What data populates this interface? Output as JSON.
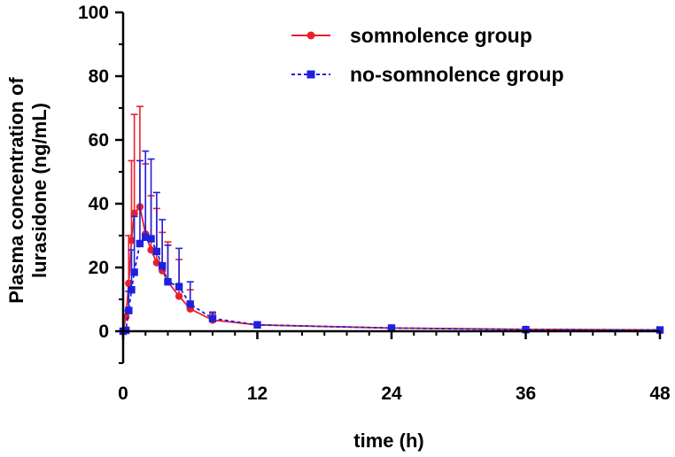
{
  "chart_data": {
    "type": "line",
    "title": "",
    "xlabel": "time (h)",
    "ylabel_lines": [
      "Plasma concentration of",
      "lurasidone (ng/mL)"
    ],
    "xlim": [
      0,
      48
    ],
    "ylim": [
      -10,
      100
    ],
    "x_ticks": [
      0,
      12,
      24,
      36,
      48
    ],
    "y_ticks": [
      0,
      20,
      40,
      60,
      80,
      100
    ],
    "x_tick_labels": [
      "0",
      "12",
      "24",
      "36",
      "48"
    ],
    "y_tick_labels": [
      "0",
      "20",
      "40",
      "60",
      "80",
      "100"
    ],
    "grid": false,
    "legend_position": "top-right",
    "series": [
      {
        "name": "somnolence group",
        "color": "#e8202a",
        "marker": "circle",
        "line_style": "solid",
        "x": [
          0,
          0.25,
          0.5,
          0.75,
          1,
          1.5,
          2,
          2.5,
          3,
          3.5,
          4,
          5,
          6,
          8,
          12,
          24,
          36,
          48
        ],
        "values": [
          0,
          4.5,
          15,
          28.5,
          37,
          39,
          30.5,
          25.5,
          21.5,
          19,
          15.5,
          11,
          7,
          3.5,
          2,
          1,
          0.6,
          0.4
        ],
        "errors": [
          0,
          2,
          15,
          25,
          31,
          31.5,
          22,
          17,
          17,
          12,
          12.5,
          11.5,
          6,
          2,
          0.4,
          0.3,
          0.2,
          0.1
        ]
      },
      {
        "name": "no-somnolence group",
        "color": "#1f1fe0",
        "marker": "square",
        "line_style": "dashed",
        "x": [
          0,
          0.25,
          0.5,
          0.75,
          1,
          1.5,
          2,
          2.5,
          3,
          3.5,
          4,
          5,
          6,
          8,
          12,
          24,
          36,
          48
        ],
        "values": [
          0,
          0.3,
          6.5,
          13,
          18.5,
          27.5,
          29.5,
          29,
          25,
          20.5,
          15.5,
          14,
          8.5,
          4,
          2,
          1,
          0.5,
          0.4
        ],
        "errors": [
          0,
          0.5,
          6,
          12.5,
          17.5,
          26,
          27,
          25,
          18.5,
          14.5,
          11.5,
          12,
          7,
          2,
          0.5,
          0.3,
          0.2,
          0.1
        ]
      }
    ]
  }
}
